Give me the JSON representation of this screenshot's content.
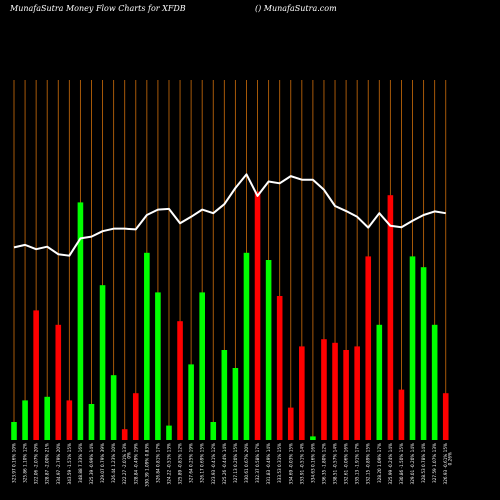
{
  "header": {
    "left": "MunafaSutra  Money Flow  Charts for XFDB",
    "right": "() MunafaSutra.com"
  },
  "colors": {
    "background": "#000000",
    "grid": "#b8620a",
    "up": "#00ff00",
    "down": "#ff0000",
    "line": "#ffffff"
  },
  "chart_data": {
    "type": "bar",
    "title": "",
    "ylim": [
      0,
      100
    ],
    "grid": "vertical",
    "bars": [
      {
        "label": "323.97 0.16% 10%",
        "value": 5,
        "dir": "up"
      },
      {
        "label": "325.86 1.10% 12%",
        "value": 11,
        "dir": "up"
      },
      {
        "label": "322.06 -2.07% 20%",
        "value": 36,
        "dir": "down"
      },
      {
        "label": "328.87 -2.00% 21%",
        "value": 12,
        "dir": "up"
      },
      {
        "label": "334.97 -2.79% 20%",
        "value": 32,
        "dir": "down"
      },
      {
        "label": "343.59 -1.51% 15%",
        "value": 11,
        "dir": "down"
      },
      {
        "label": "348.88 7.33% 16%",
        "value": 66,
        "dir": "up"
      },
      {
        "label": "325.39 -0.99% 14%",
        "value": 10,
        "dir": "up"
      },
      {
        "label": "329.07 0.79% 39%",
        "value": 43,
        "dir": "up"
      },
      {
        "label": "326.44 1.23% 10%",
        "value": 18,
        "dir": "up"
      },
      {
        "label": "322.27 -2.01% 13%",
        "value": 3,
        "dir": "down"
      },
      {
        "label": "328.84 -0.49% 19%",
        "value": 13,
        "dir": "down"
      },
      {
        "label": "330.39 1.09% 0.83%",
        "value": 52,
        "dir": "up"
      },
      {
        "label": "326.84 0.81% 17%",
        "value": 41,
        "dir": "up"
      },
      {
        "label": "324.22 -0.51% 13%",
        "value": 4,
        "dir": "up"
      },
      {
        "label": "325.89 -0.81% 12%",
        "value": 33,
        "dir": "down"
      },
      {
        "label": "327.64 0.25% 19%",
        "value": 21,
        "dir": "up"
      },
      {
        "label": "326.17 0.69% 15%",
        "value": 41,
        "dir": "up"
      },
      {
        "label": "323.93 -0.41% 12%",
        "value": 5,
        "dir": "up"
      },
      {
        "label": "325.26 -0.44% 14%",
        "value": 25,
        "dir": "up"
      },
      {
        "label": "327.13 0.20% 15%",
        "value": 20,
        "dir": "up"
      },
      {
        "label": "330.61 0.67% 20%",
        "value": 52,
        "dir": "up"
      },
      {
        "label": "332.37 0.58% 17%",
        "value": 69,
        "dir": "down"
      },
      {
        "label": "331.83 -0.49% 14%",
        "value": 50,
        "dir": "up"
      },
      {
        "label": "333.53 0.31% 15%",
        "value": 40,
        "dir": "down"
      },
      {
        "label": "334.69 -0.03% 15%",
        "value": 9,
        "dir": "down"
      },
      {
        "label": "333.91 -0.51% 14%",
        "value": 26,
        "dir": "down"
      },
      {
        "label": "334.63 0.16% 16%",
        "value": 1,
        "dir": "up"
      },
      {
        "label": "336.35 -1.80% 12%",
        "value": 28,
        "dir": "down"
      },
      {
        "label": "338.51 -0.57% 14%",
        "value": 27,
        "dir": "down"
      },
      {
        "label": "332.61 -0.06% 16%",
        "value": 25,
        "dir": "down"
      },
      {
        "label": "335.13 -1.91% 17%",
        "value": 26,
        "dir": "down"
      },
      {
        "label": "332.15 -0.89% 15%",
        "value": 51,
        "dir": "down"
      },
      {
        "label": "328.20 1.09% 17%",
        "value": 32,
        "dir": "up"
      },
      {
        "label": "325.99 -0.24% 14%",
        "value": 68,
        "dir": "down"
      },
      {
        "label": "330.86 -1.50% 15%",
        "value": 14,
        "dir": "down"
      },
      {
        "label": "329.01 -0.20% 14%",
        "value": 51,
        "dir": "up"
      },
      {
        "label": "328.53 0.78% 14%",
        "value": 48,
        "dir": "up"
      },
      {
        "label": "327.59 1.07% 13%",
        "value": 32,
        "dir": "up"
      },
      {
        "label": "326.93 -0.61% 15%",
        "value": 13,
        "dir": "down"
      }
    ],
    "line": [
      53.5,
      54.2,
      53.0,
      53.7,
      51.6,
      51.2,
      56.0,
      56.5,
      58.0,
      58.7,
      58.7,
      58.5,
      62.5,
      64.0,
      64.2,
      60.2,
      62.0,
      64.0,
      63.0,
      65.5,
      70.0,
      73.8,
      67.8,
      71.8,
      71.3,
      73.3,
      72.3,
      72.3,
      69.5,
      65.0,
      63.6,
      62.0,
      59.0,
      63.0,
      59.5,
      59.1,
      60.9,
      62.5,
      63.5,
      63.0
    ],
    "annotations": [
      {
        "after_index": 10,
        "text": "0%"
      },
      {
        "after_index": 39,
        "text": "0.26%"
      }
    ]
  }
}
